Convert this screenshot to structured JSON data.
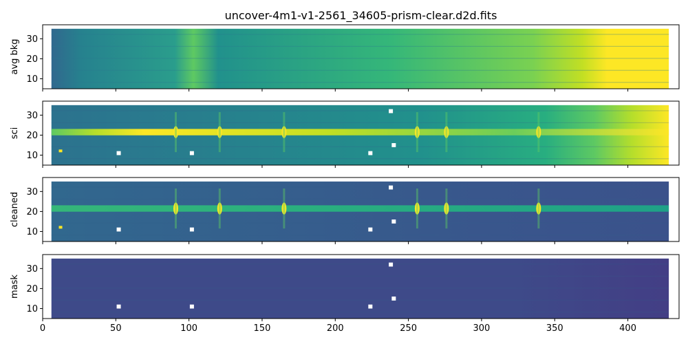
{
  "title": "uncover-4m1-v1-2561_34605-prism-clear.d2d.fits",
  "chart_data": {
    "type": "heatmap",
    "title": "uncover-4m1-v1-2561_34605-prism-clear.d2d.fits",
    "colormap": "viridis",
    "shared_x": true,
    "xlim": [
      0,
      435
    ],
    "x_ticks": [
      0,
      50,
      100,
      150,
      200,
      250,
      300,
      350,
      400
    ],
    "ylim": [
      5,
      37
    ],
    "y_ticks": [
      10,
      20,
      30
    ],
    "data_extent": {
      "x": [
        6,
        428
      ],
      "y": [
        5,
        35
      ]
    },
    "trace_row": 21.5,
    "emission_lines_x": [
      91,
      121,
      165,
      256,
      276,
      339
    ],
    "bright_knot": {
      "x": 12,
      "y": 12
    },
    "panels": [
      {
        "ylabel": "avg bkg",
        "description": "background gradient, low on left rising to saturated at right",
        "bright_start_x": 370,
        "secondary_glow_x": 90
      },
      {
        "ylabel": "sci",
        "description": "science spectrum, bright horizontal trace with emission lines"
      },
      {
        "ylabel": "cleaned",
        "description": "background-subtracted spectrum"
      },
      {
        "ylabel": "mask",
        "description": "mostly uniform mask values, faint noise at red end"
      }
    ],
    "masked_pixels": [
      {
        "x": 52,
        "y": 11
      },
      {
        "x": 102,
        "y": 11
      },
      {
        "x": 224,
        "y": 11
      },
      {
        "x": 238,
        "y": 32
      },
      {
        "x": 240,
        "y": 15
      }
    ]
  }
}
